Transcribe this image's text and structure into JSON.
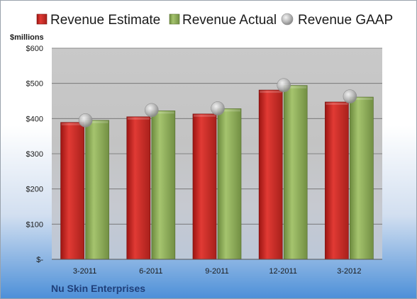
{
  "chart_data": {
    "type": "bar",
    "ylabel": "$millions",
    "ylim": [
      0,
      600
    ],
    "y_ticks": [
      "$-",
      "$100",
      "$200",
      "$300",
      "$400",
      "$500",
      "$600"
    ],
    "categories": [
      "3-2011",
      "6-2011",
      "9-2011",
      "12-2011",
      "3-2012"
    ],
    "series": [
      {
        "name": "Revenue Estimate",
        "kind": "bar",
        "color": "#c8231f",
        "values": [
          389,
          405,
          413,
          481,
          447
        ]
      },
      {
        "name": "Revenue Actual",
        "kind": "bar",
        "color": "#8aa957",
        "values": [
          395,
          422,
          428,
          494,
          461
        ]
      },
      {
        "name": "Revenue GAAP",
        "kind": "marker",
        "color": "#c8c8c8",
        "values": [
          395,
          424,
          429,
          495,
          463
        ]
      }
    ],
    "grid": true,
    "legend_position": "top",
    "company": "Nu Skin Enterprises"
  }
}
